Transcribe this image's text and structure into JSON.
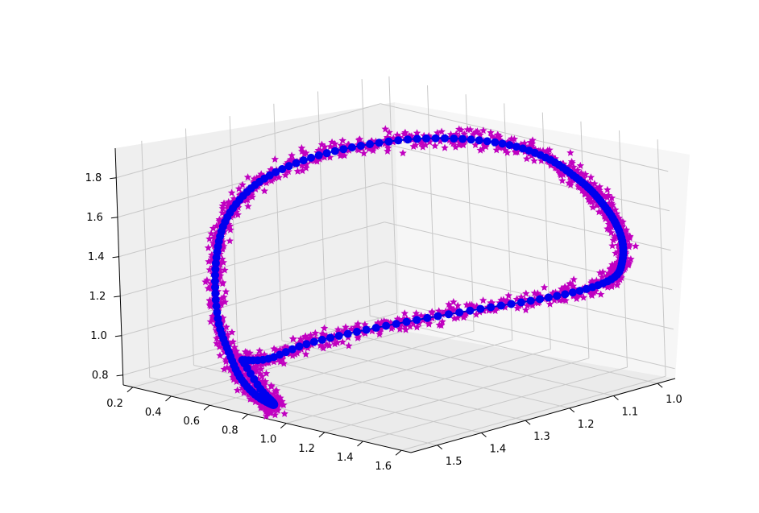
{
  "chart_data": {
    "type": "scatter3d",
    "title": "",
    "xlabel": "",
    "ylabel": "",
    "zlabel": "",
    "grid": true,
    "legend": "none",
    "axes": {
      "x_ticks": [
        "0.2",
        "0.4",
        "0.6",
        "0.8",
        "1.0",
        "1.2",
        "1.4",
        "1.6"
      ],
      "y_ticks": [
        "1.0",
        "1.1",
        "1.2",
        "1.3",
        "1.4",
        "1.5"
      ],
      "z_ticks": [
        "0.8",
        "1.0",
        "1.2",
        "1.4",
        "1.6",
        "1.8"
      ],
      "xlim": [
        0.15,
        1.65
      ],
      "ylim": [
        0.96,
        1.56
      ],
      "zlim": [
        0.75,
        1.95
      ]
    },
    "series": [
      {
        "style": "magenta-stars",
        "color": "#c000c0",
        "marker": "star",
        "description_points": "noisy samples scattered around the curve"
      },
      {
        "style": "blue-line-dots",
        "color": "#0000ee",
        "line_color": "#0000cc",
        "marker": "circle"
      }
    ],
    "curve_path": [
      [
        0.78,
        1.56,
        1.02
      ],
      [
        0.8,
        1.53,
        0.86
      ],
      [
        0.82,
        1.51,
        0.78
      ],
      [
        0.78,
        1.5,
        0.76
      ],
      [
        0.7,
        1.5,
        0.79
      ],
      [
        0.6,
        1.49,
        0.85
      ],
      [
        0.5,
        1.47,
        0.94
      ],
      [
        0.43,
        1.46,
        1.06
      ],
      [
        0.37,
        1.44,
        1.22
      ],
      [
        0.34,
        1.42,
        1.38
      ],
      [
        0.34,
        1.4,
        1.52
      ],
      [
        0.37,
        1.37,
        1.64
      ],
      [
        0.42,
        1.33,
        1.73
      ],
      [
        0.5,
        1.27,
        1.8
      ],
      [
        0.6,
        1.2,
        1.84
      ],
      [
        0.71,
        1.12,
        1.85
      ],
      [
        0.83,
        1.05,
        1.83
      ],
      [
        0.95,
        1.0,
        1.79
      ],
      [
        1.08,
        0.98,
        1.74
      ],
      [
        1.22,
        0.99,
        1.7
      ],
      [
        1.33,
        1.0,
        1.66
      ],
      [
        1.42,
        1.01,
        1.61
      ],
      [
        1.5,
        1.02,
        1.55
      ],
      [
        1.56,
        1.03,
        1.47
      ],
      [
        1.58,
        1.04,
        1.38
      ],
      [
        1.56,
        1.05,
        1.3
      ],
      [
        1.48,
        1.08,
        1.24
      ],
      [
        1.35,
        1.13,
        1.19
      ],
      [
        1.2,
        1.2,
        1.15
      ],
      [
        1.05,
        1.28,
        1.11
      ],
      [
        0.92,
        1.36,
        1.07
      ],
      [
        0.84,
        1.44,
        1.04
      ],
      [
        0.8,
        1.51,
        1.0
      ],
      [
        0.78,
        1.56,
        1.02
      ]
    ]
  }
}
